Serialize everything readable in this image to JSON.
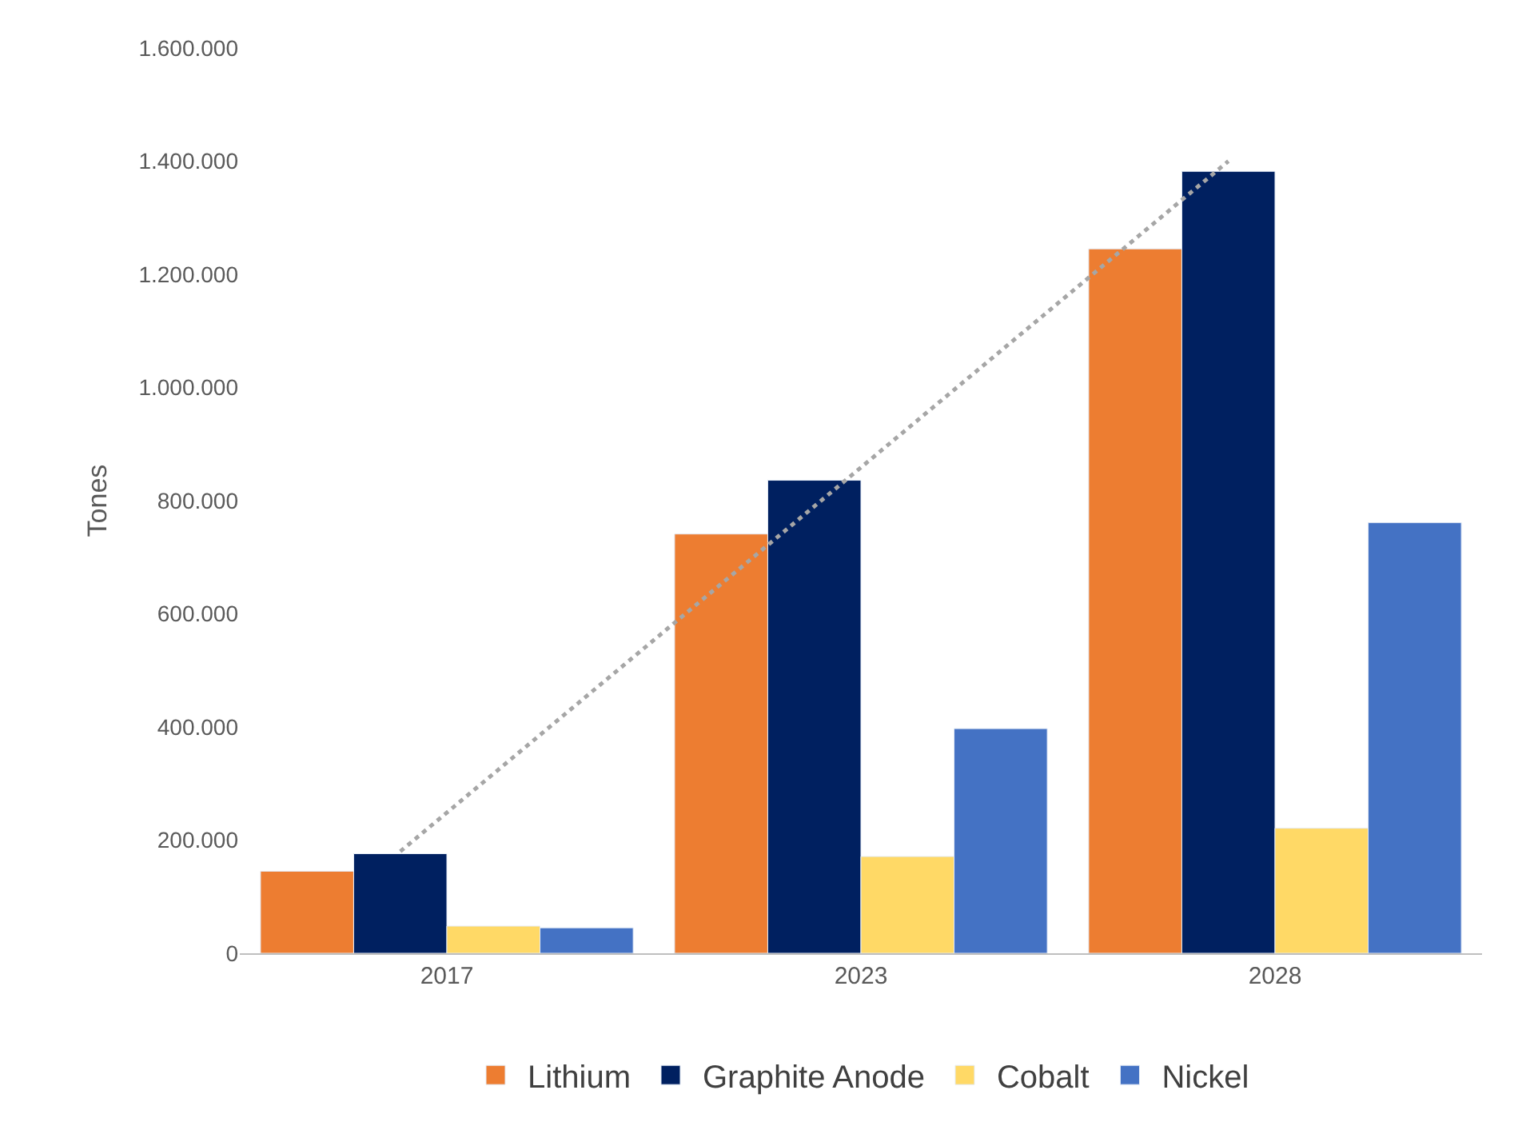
{
  "chart_data": {
    "type": "bar",
    "ylabel": "Tones",
    "categories": [
      "2017",
      "2023",
      "2028"
    ],
    "series": [
      {
        "name": "Lithium",
        "color": "#ed7d31",
        "values": [
          145000,
          741000,
          1245000
        ]
      },
      {
        "name": "Graphite Anode",
        "color": "#002060",
        "values": [
          176000,
          836000,
          1382000
        ]
      },
      {
        "name": "Cobalt",
        "color": "#ffd966",
        "values": [
          48000,
          171000,
          221000
        ]
      },
      {
        "name": "Nickel",
        "color": "#4472c4",
        "values": [
          45000,
          397000,
          761000
        ]
      },
      {
        "type": "line",
        "color": "#a6a6a6",
        "line_style": "dotted",
        "marker": "none",
        "values": [
          180000,
          790000,
          1400000
        ]
      }
    ],
    "ylim": [
      0,
      1600000
    ],
    "yticks": [
      0,
      {
        "value": 200000,
        "label": "200.000"
      },
      {
        "value": 400000,
        "label": "400.000"
      },
      {
        "value": 600000,
        "label": "600.000"
      },
      {
        "value": 800000,
        "label": "800.000"
      },
      {
        "value": 1000000,
        "label": "1.000.000"
      },
      {
        "value": 1200000,
        "label": "1.200.000"
      },
      {
        "value": 1400000,
        "label": "1.400.000"
      },
      {
        "value": 1600000,
        "label": "1.600.000"
      }
    ],
    "grid": false,
    "legend": "bottom"
  }
}
